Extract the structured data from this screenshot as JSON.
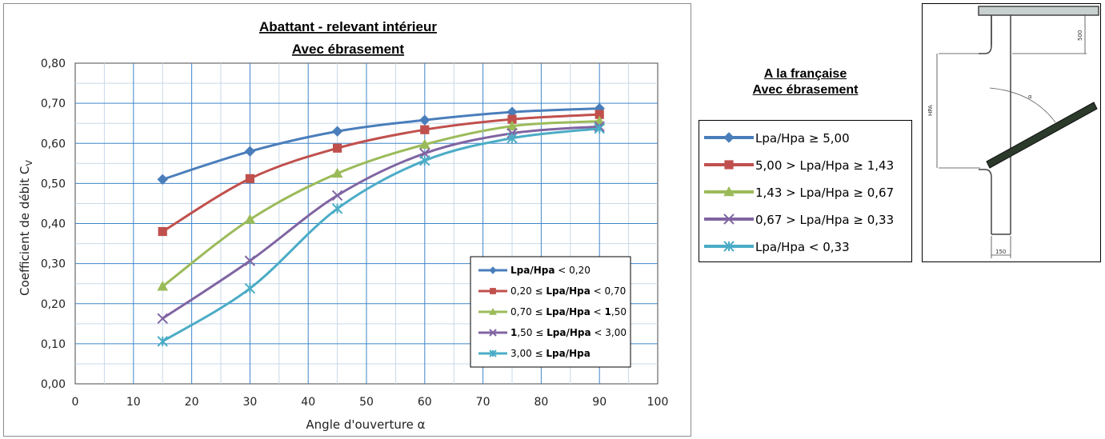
{
  "chart_data": {
    "type": "line",
    "title": [
      "Abattant - relevant intérieur",
      "Avec ébrasement"
    ],
    "xlabel": "Angle d'ouverture α",
    "ylabel": "Coefficient  de débit C",
    "ylabel_sub": "V",
    "xlim": [
      0,
      100
    ],
    "ylim": [
      0,
      0.8
    ],
    "x_ticks": [
      "0",
      "10",
      "20",
      "30",
      "40",
      "50",
      "60",
      "70",
      "80",
      "90",
      "100"
    ],
    "y_ticks": [
      "0,00",
      "0,10",
      "0,20",
      "0,30",
      "0,40",
      "0,50",
      "0,60",
      "0,70",
      "0,80"
    ],
    "grid": true,
    "legend_position": "bottom-right",
    "x": [
      15,
      30,
      45,
      60,
      75,
      90
    ],
    "series": [
      {
        "legend": [
          "Lpa/Hpa",
          " < 0,20"
        ],
        "color": "#4a7ebb",
        "marker": "diamond",
        "values": [
          0.51,
          0.58,
          0.63,
          0.658,
          0.678,
          0.687
        ]
      },
      {
        "legend": [
          "0,20 ≤ ",
          "Lpa/Hpa",
          " < 0,70"
        ],
        "color": "#c0504d",
        "marker": "square",
        "values": [
          0.38,
          0.512,
          0.588,
          0.634,
          0.66,
          0.672
        ]
      },
      {
        "legend": [
          "0,70 ≤ ",
          "Lpa/Hpa",
          " < ",
          "1",
          ",50"
        ],
        "color": "#9bbb59",
        "marker": "triangle",
        "values": [
          0.243,
          0.41,
          0.525,
          0.597,
          0.643,
          0.655
        ]
      },
      {
        "legend": [
          "1",
          ",50 ≤ ",
          "Lpa/Hpa",
          " < 3,00"
        ],
        "color": "#8064a2",
        "marker": "x",
        "values": [
          0.163,
          0.307,
          0.47,
          0.575,
          0.625,
          0.642
        ]
      },
      {
        "legend": [
          "3,00 ≤ ",
          "Lpa/Hpa",
          ""
        ],
        "color": "#4bacc6",
        "marker": "star",
        "values": [
          0.106,
          0.238,
          0.437,
          0.557,
          0.613,
          0.637
        ]
      }
    ]
  },
  "side_panel": {
    "title": [
      "A la française",
      "Avec ébrasement"
    ],
    "legend": [
      "Lpa/Hpa ≥ 5,00",
      "5,00 > Lpa/Hpa ≥ 1,43",
      "1,43 > Lpa/Hpa ≥ 0,67",
      "0,67 > Lpa/Hpa ≥ 0,33",
      "Lpa/Hpa < 0,33"
    ]
  },
  "drawing": {
    "dim_top": "500",
    "dim_side": "HPA",
    "dim_bottom": "150",
    "angle_symbol": "α"
  }
}
